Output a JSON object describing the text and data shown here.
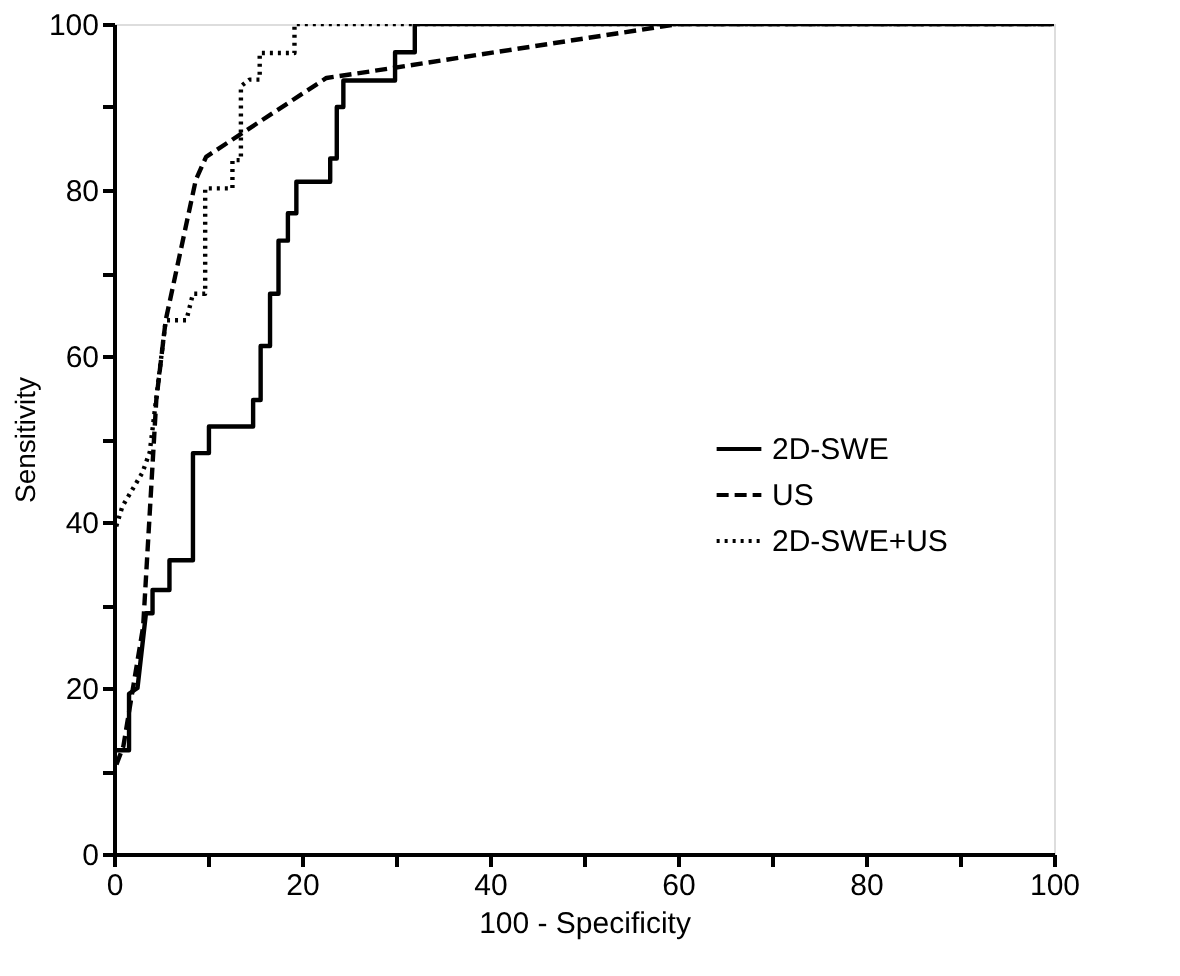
{
  "chart_data": {
    "type": "line",
    "xlabel": "100 - Specificity",
    "ylabel": "Sensitivity",
    "xlim": [
      0,
      100
    ],
    "ylim": [
      0,
      100
    ],
    "xticks": [
      0,
      {
        "value": 10,
        "label": null
      },
      20,
      {
        "value": 30,
        "label": null
      },
      40,
      {
        "value": 50,
        "label": null
      },
      60,
      {
        "value": 70,
        "label": null
      },
      80,
      {
        "value": 90,
        "label": null
      },
      100
    ],
    "yticks": [
      0,
      {
        "value": 10,
        "label": null
      },
      20,
      {
        "value": 30,
        "label": null
      },
      40,
      {
        "value": 50,
        "label": null
      },
      60,
      {
        "value": 70,
        "label": null
      },
      80,
      {
        "value": 90,
        "label": null
      },
      100
    ],
    "grid": false,
    "legend": "right",
    "marker": "none",
    "series": [
      {
        "name": "2D-SWE",
        "color": "#000000",
        "line_style": "solid",
        "x": [
          0,
          0,
          1.6,
          1.6,
          2.5,
          3.4,
          4.1,
          4.1,
          5.9,
          5.9,
          8.4,
          8.4,
          10.1,
          10.1,
          14.8,
          14.8,
          15.6,
          15.6,
          16.6,
          16.6,
          17.5,
          17.5,
          18.5,
          18.5,
          19.4,
          19.4,
          23.0,
          23.0,
          23.7,
          23.7,
          24.4,
          24.4,
          29.9,
          29.9,
          32.0,
          32.0,
          100
        ],
        "values": [
          0,
          12.5,
          12.5,
          19.3,
          20,
          29,
          29,
          31.8,
          31.8,
          35.4,
          35.4,
          48.3,
          48.3,
          51.5,
          51.5,
          54.7,
          54.7,
          61.2,
          61.2,
          67.5,
          67.5,
          73.9,
          73.9,
          77.2,
          77.2,
          81.0,
          81.0,
          83.8,
          83.8,
          90.0,
          90.0,
          93.2,
          93.2,
          96.6,
          96.6,
          100,
          100
        ]
      },
      {
        "name": "US",
        "color": "#000000",
        "line_style": "dashed",
        "x": [
          0,
          0,
          1,
          3.1,
          4.5,
          5.5,
          8.7,
          9.8,
          22.6,
          29.7,
          60,
          100
        ],
        "values": [
          0,
          10,
          13,
          27.4,
          54.7,
          64.3,
          81.2,
          84.0,
          93.5,
          94.7,
          100,
          100
        ]
      },
      {
        "name": "2D-SWE+US",
        "color": "#000000",
        "line_style": "dotted",
        "x": [
          0,
          0,
          0.9,
          3.0,
          3.8,
          5.5,
          7.7,
          8.4,
          9.7,
          9.7,
          12.6,
          12.6,
          13.5,
          13.5,
          14.4,
          15.5,
          15.5,
          19.2,
          19.2,
          100
        ],
        "values": [
          0,
          38.6,
          41.9,
          45.9,
          48.4,
          64.3,
          64.3,
          67.5,
          67.5,
          80.2,
          80.2,
          83.6,
          83.6,
          92.5,
          93.3,
          93.3,
          96.5,
          96.5,
          100,
          100
        ]
      }
    ]
  }
}
